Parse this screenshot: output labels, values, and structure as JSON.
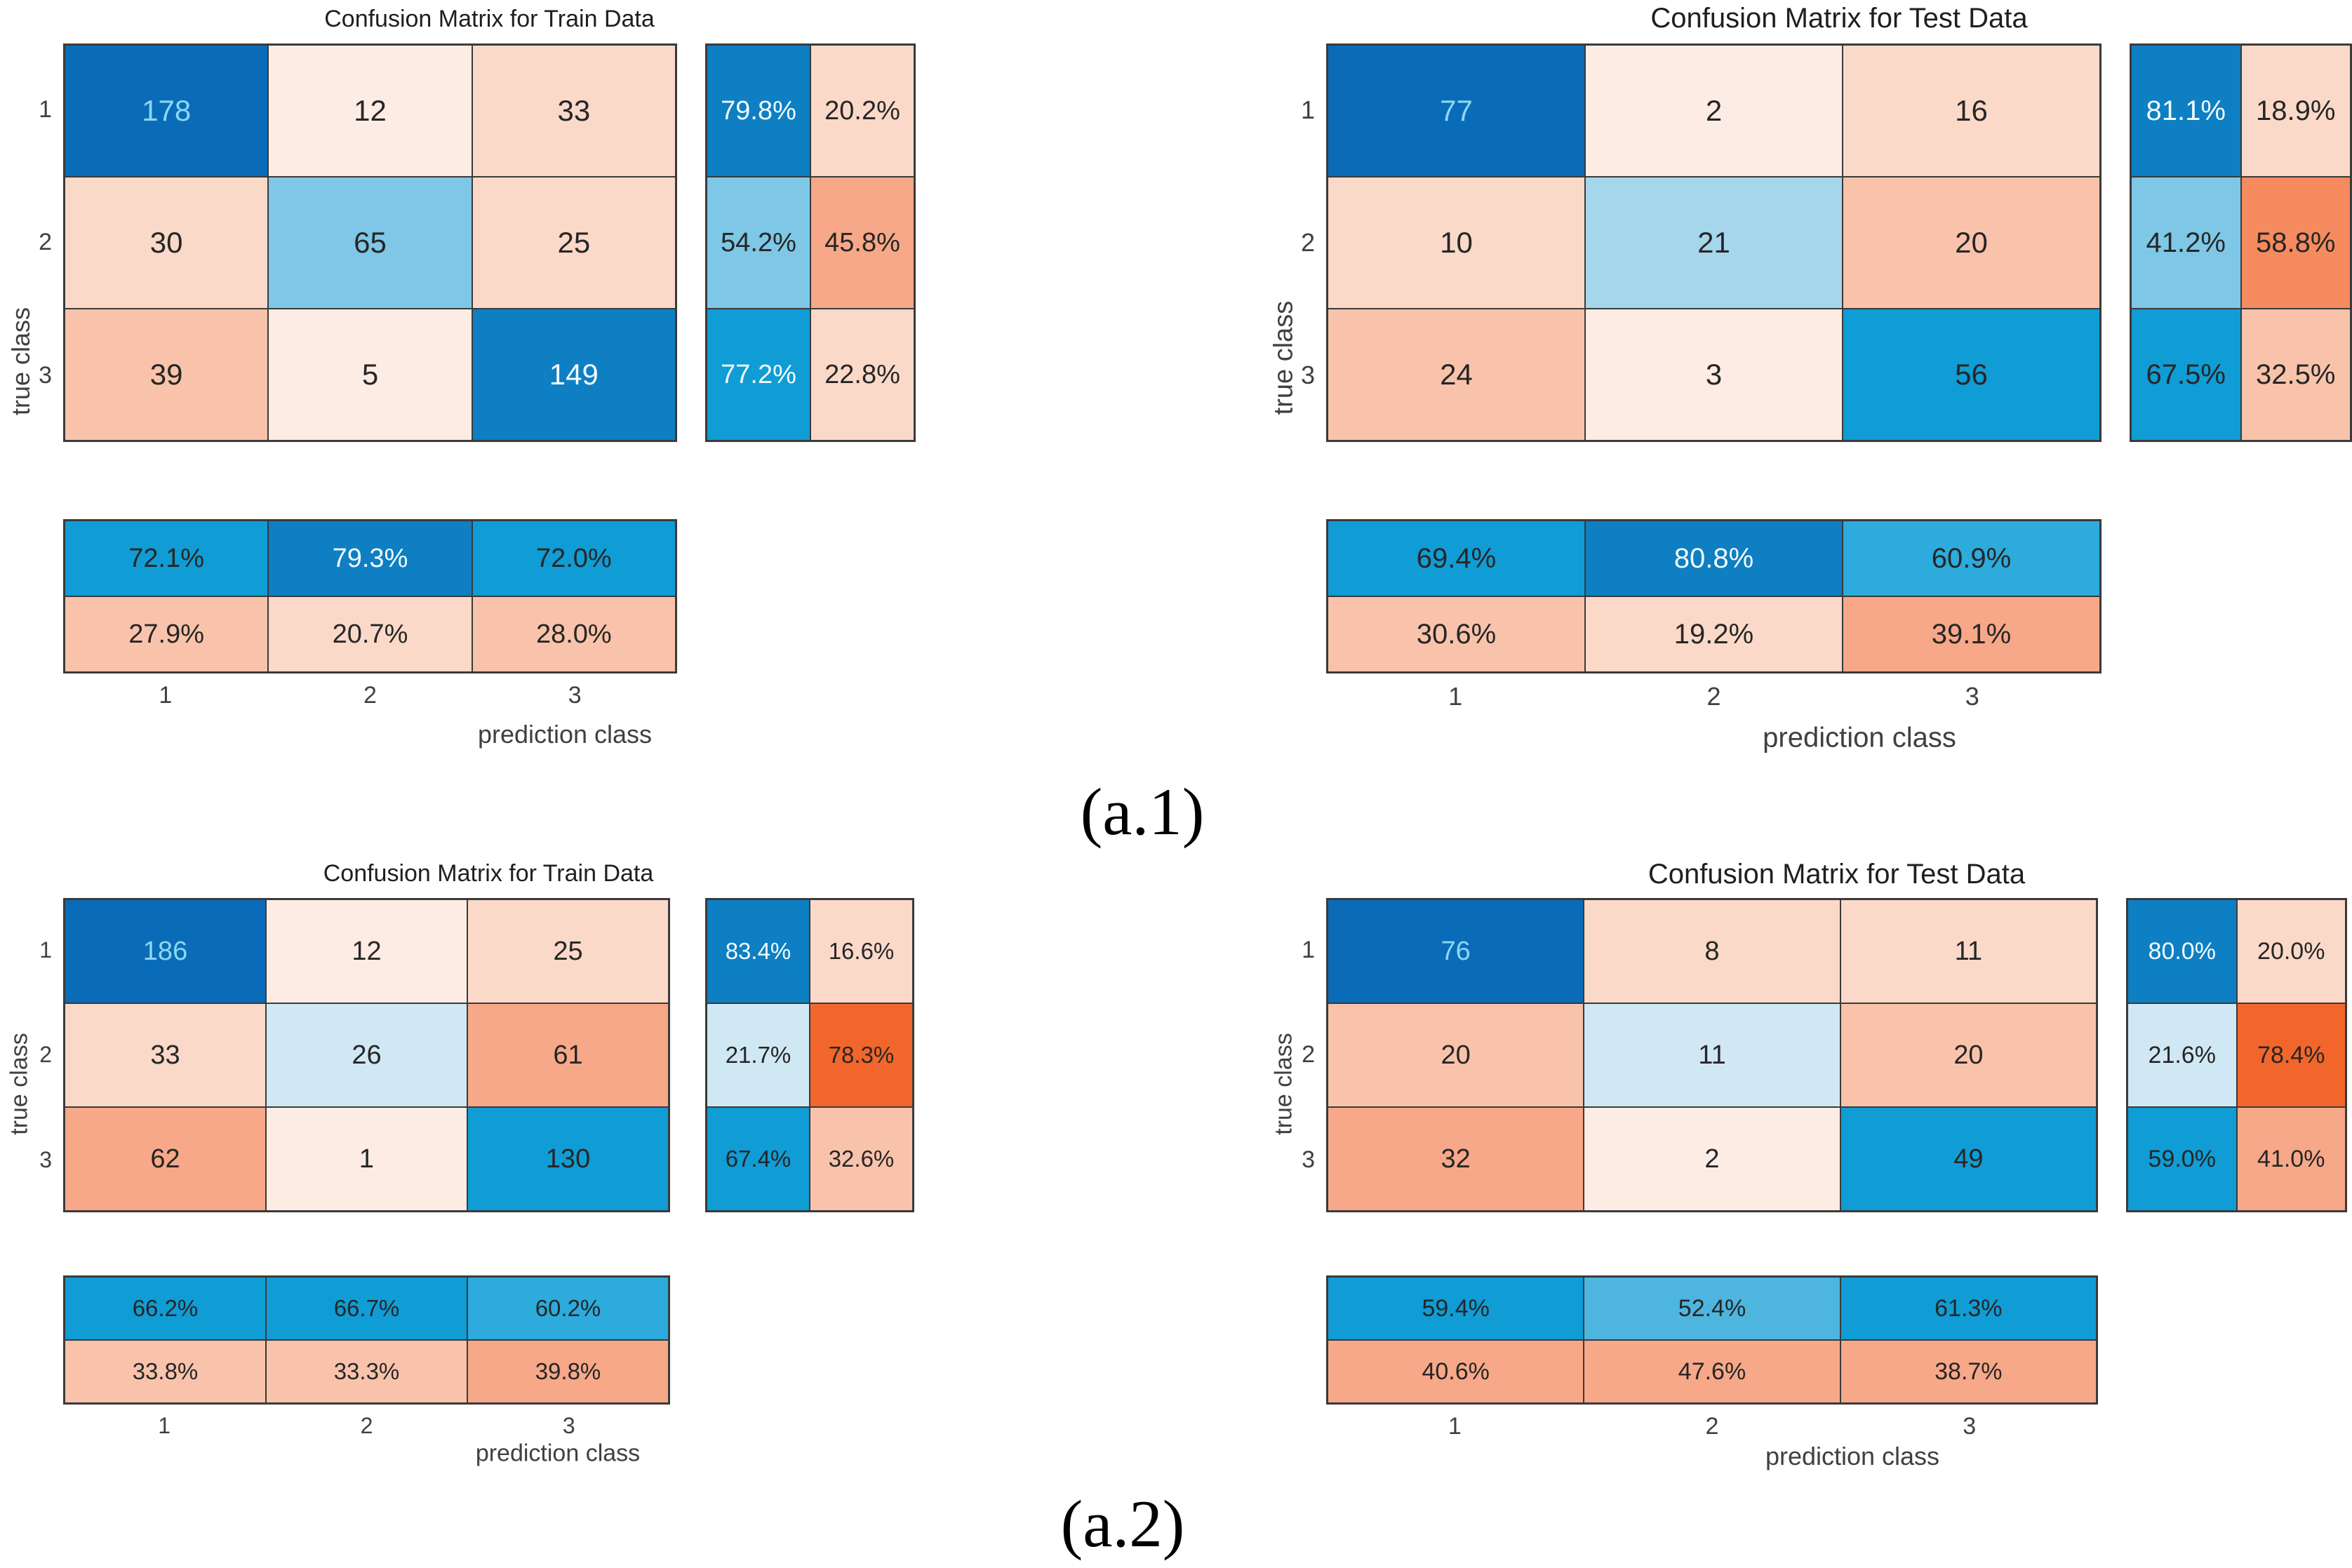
{
  "captions": {
    "a1": "(a.1)",
    "a2": "(a.2)"
  },
  "palette": {
    "blue_dark": "#0a6cb8",
    "blue_med": "#0d7fc2",
    "blue_std": "#109cd4",
    "blue_cyan": "#2cabdc",
    "blue_mid": "#4db5de",
    "blue_light": "#7ec7e6",
    "blue_pale": "#a6d6ec",
    "blue_faint": "#d0e8f4",
    "pink_faint": "#fdece4",
    "pink_light": "#fbd9c9",
    "pink_med": "#f9c3ab",
    "pink_deep": "#f7a888",
    "pink_hot": "#f58b5e",
    "orange_hot": "#f2662b"
  },
  "text_colors": {
    "dark": "#262626",
    "white": "#f2fafd",
    "cyan": "#8ed7f2"
  },
  "panels": [
    {
      "id": "train-a1",
      "title": "Confusion Matrix for Train Data",
      "xlabel": "prediction class",
      "ylabel": "true class",
      "row_ticks": [
        "1",
        "2",
        "3"
      ],
      "col_ticks": [
        "1",
        "2",
        "3"
      ],
      "matrix": [
        [
          {
            "v": "178",
            "bg": "blue_dark",
            "fg": "cyan"
          },
          {
            "v": "12",
            "bg": "pink_faint",
            "fg": "dark"
          },
          {
            "v": "33",
            "bg": "pink_light",
            "fg": "dark"
          }
        ],
        [
          {
            "v": "30",
            "bg": "pink_light",
            "fg": "dark"
          },
          {
            "v": "65",
            "bg": "blue_light",
            "fg": "dark"
          },
          {
            "v": "25",
            "bg": "pink_light",
            "fg": "dark"
          }
        ],
        [
          {
            "v": "39",
            "bg": "pink_med",
            "fg": "dark"
          },
          {
            "v": "5",
            "bg": "pink_faint",
            "fg": "dark"
          },
          {
            "v": "149",
            "bg": "blue_med",
            "fg": "white"
          }
        ]
      ],
      "row_summary": [
        [
          {
            "v": "79.8%",
            "bg": "blue_med",
            "fg": "white"
          },
          {
            "v": "20.2%",
            "bg": "pink_light",
            "fg": "dark"
          }
        ],
        [
          {
            "v": "54.2%",
            "bg": "blue_light",
            "fg": "dark"
          },
          {
            "v": "45.8%",
            "bg": "pink_deep",
            "fg": "dark"
          }
        ],
        [
          {
            "v": "77.2%",
            "bg": "blue_std",
            "fg": "white"
          },
          {
            "v": "22.8%",
            "bg": "pink_light",
            "fg": "dark"
          }
        ]
      ],
      "col_summary": [
        [
          {
            "v": "72.1%",
            "bg": "blue_std",
            "fg": "dark"
          },
          {
            "v": "79.3%",
            "bg": "blue_med",
            "fg": "white"
          },
          {
            "v": "72.0%",
            "bg": "blue_std",
            "fg": "dark"
          }
        ],
        [
          {
            "v": "27.9%",
            "bg": "pink_med",
            "fg": "dark"
          },
          {
            "v": "20.7%",
            "bg": "pink_light",
            "fg": "dark"
          },
          {
            "v": "28.0%",
            "bg": "pink_med",
            "fg": "dark"
          }
        ]
      ]
    },
    {
      "id": "test-a1",
      "title": "Confusion Matrix for Test Data",
      "xlabel": "prediction class",
      "ylabel": "true class",
      "row_ticks": [
        "1",
        "2",
        "3"
      ],
      "col_ticks": [
        "1",
        "2",
        "3"
      ],
      "matrix": [
        [
          {
            "v": "77",
            "bg": "blue_dark",
            "fg": "cyan"
          },
          {
            "v": "2",
            "bg": "pink_faint",
            "fg": "dark"
          },
          {
            "v": "16",
            "bg": "pink_light",
            "fg": "dark"
          }
        ],
        [
          {
            "v": "10",
            "bg": "pink_light",
            "fg": "dark"
          },
          {
            "v": "21",
            "bg": "blue_pale",
            "fg": "dark"
          },
          {
            "v": "20",
            "bg": "pink_med",
            "fg": "dark"
          }
        ],
        [
          {
            "v": "24",
            "bg": "pink_med",
            "fg": "dark"
          },
          {
            "v": "3",
            "bg": "pink_faint",
            "fg": "dark"
          },
          {
            "v": "56",
            "bg": "blue_std",
            "fg": "dark"
          }
        ]
      ],
      "row_summary": [
        [
          {
            "v": "81.1%",
            "bg": "blue_med",
            "fg": "white"
          },
          {
            "v": "18.9%",
            "bg": "pink_light",
            "fg": "dark"
          }
        ],
        [
          {
            "v": "41.2%",
            "bg": "blue_light",
            "fg": "dark"
          },
          {
            "v": "58.8%",
            "bg": "pink_hot",
            "fg": "dark"
          }
        ],
        [
          {
            "v": "67.5%",
            "bg": "blue_std",
            "fg": "dark"
          },
          {
            "v": "32.5%",
            "bg": "pink_med",
            "fg": "dark"
          }
        ]
      ],
      "col_summary": [
        [
          {
            "v": "69.4%",
            "bg": "blue_std",
            "fg": "dark"
          },
          {
            "v": "80.8%",
            "bg": "blue_med",
            "fg": "white"
          },
          {
            "v": "60.9%",
            "bg": "blue_cyan",
            "fg": "dark"
          }
        ],
        [
          {
            "v": "30.6%",
            "bg": "pink_med",
            "fg": "dark"
          },
          {
            "v": "19.2%",
            "bg": "pink_light",
            "fg": "dark"
          },
          {
            "v": "39.1%",
            "bg": "pink_deep",
            "fg": "dark"
          }
        ]
      ]
    },
    {
      "id": "train-a2",
      "title": "Confusion Matrix for Train Data",
      "xlabel": "prediction class",
      "ylabel": "true class",
      "row_ticks": [
        "1",
        "2",
        "3"
      ],
      "col_ticks": [
        "1",
        "2",
        "3"
      ],
      "matrix": [
        [
          {
            "v": "186",
            "bg": "blue_dark",
            "fg": "cyan"
          },
          {
            "v": "12",
            "bg": "pink_faint",
            "fg": "dark"
          },
          {
            "v": "25",
            "bg": "pink_light",
            "fg": "dark"
          }
        ],
        [
          {
            "v": "33",
            "bg": "pink_light",
            "fg": "dark"
          },
          {
            "v": "26",
            "bg": "blue_faint",
            "fg": "dark"
          },
          {
            "v": "61",
            "bg": "pink_deep",
            "fg": "dark"
          }
        ],
        [
          {
            "v": "62",
            "bg": "pink_deep",
            "fg": "dark"
          },
          {
            "v": "1",
            "bg": "pink_faint",
            "fg": "dark"
          },
          {
            "v": "130",
            "bg": "blue_std",
            "fg": "dark"
          }
        ]
      ],
      "row_summary": [
        [
          {
            "v": "83.4%",
            "bg": "blue_med",
            "fg": "white"
          },
          {
            "v": "16.6%",
            "bg": "pink_light",
            "fg": "dark"
          }
        ],
        [
          {
            "v": "21.7%",
            "bg": "blue_faint",
            "fg": "dark"
          },
          {
            "v": "78.3%",
            "bg": "orange_hot",
            "fg": "dark"
          }
        ],
        [
          {
            "v": "67.4%",
            "bg": "blue_std",
            "fg": "dark"
          },
          {
            "v": "32.6%",
            "bg": "pink_med",
            "fg": "dark"
          }
        ]
      ],
      "col_summary": [
        [
          {
            "v": "66.2%",
            "bg": "blue_std",
            "fg": "dark"
          },
          {
            "v": "66.7%",
            "bg": "blue_std",
            "fg": "dark"
          },
          {
            "v": "60.2%",
            "bg": "blue_cyan",
            "fg": "dark"
          }
        ],
        [
          {
            "v": "33.8%",
            "bg": "pink_med",
            "fg": "dark"
          },
          {
            "v": "33.3%",
            "bg": "pink_med",
            "fg": "dark"
          },
          {
            "v": "39.8%",
            "bg": "pink_deep",
            "fg": "dark"
          }
        ]
      ]
    },
    {
      "id": "test-a2",
      "title": "Confusion Matrix for Test Data",
      "xlabel": "prediction class",
      "ylabel": "true class",
      "row_ticks": [
        "1",
        "2",
        "3"
      ],
      "col_ticks": [
        "1",
        "2",
        "3"
      ],
      "matrix": [
        [
          {
            "v": "76",
            "bg": "blue_dark",
            "fg": "cyan"
          },
          {
            "v": "8",
            "bg": "pink_light",
            "fg": "dark"
          },
          {
            "v": "11",
            "bg": "pink_light",
            "fg": "dark"
          }
        ],
        [
          {
            "v": "20",
            "bg": "pink_med",
            "fg": "dark"
          },
          {
            "v": "11",
            "bg": "blue_faint",
            "fg": "dark"
          },
          {
            "v": "20",
            "bg": "pink_med",
            "fg": "dark"
          }
        ],
        [
          {
            "v": "32",
            "bg": "pink_deep",
            "fg": "dark"
          },
          {
            "v": "2",
            "bg": "pink_faint",
            "fg": "dark"
          },
          {
            "v": "49",
            "bg": "blue_std",
            "fg": "dark"
          }
        ]
      ],
      "row_summary": [
        [
          {
            "v": "80.0%",
            "bg": "blue_med",
            "fg": "white"
          },
          {
            "v": "20.0%",
            "bg": "pink_light",
            "fg": "dark"
          }
        ],
        [
          {
            "v": "21.6%",
            "bg": "blue_faint",
            "fg": "dark"
          },
          {
            "v": "78.4%",
            "bg": "orange_hot",
            "fg": "dark"
          }
        ],
        [
          {
            "v": "59.0%",
            "bg": "blue_std",
            "fg": "dark"
          },
          {
            "v": "41.0%",
            "bg": "pink_deep",
            "fg": "dark"
          }
        ]
      ],
      "col_summary": [
        [
          {
            "v": "59.4%",
            "bg": "blue_std",
            "fg": "dark"
          },
          {
            "v": "52.4%",
            "bg": "blue_mid",
            "fg": "dark"
          },
          {
            "v": "61.3%",
            "bg": "blue_std",
            "fg": "dark"
          }
        ],
        [
          {
            "v": "40.6%",
            "bg": "pink_deep",
            "fg": "dark"
          },
          {
            "v": "47.6%",
            "bg": "pink_deep",
            "fg": "dark"
          },
          {
            "v": "38.7%",
            "bg": "pink_deep",
            "fg": "dark"
          }
        ]
      ]
    }
  ],
  "chart_data": [
    {
      "type": "heatmap",
      "title": "Confusion Matrix for Train Data",
      "subfigure": "(a.1)",
      "xlabel": "prediction class",
      "ylabel": "true class",
      "classes": [
        1,
        2,
        3
      ],
      "counts": [
        [
          178,
          12,
          33
        ],
        [
          30,
          65,
          25
        ],
        [
          39,
          5,
          149
        ]
      ],
      "row_percent_correct": [
        [
          79.8,
          20.2
        ],
        [
          54.2,
          45.8
        ],
        [
          77.2,
          22.8
        ]
      ],
      "col_percent_correct": [
        [
          72.1,
          79.3,
          72.0
        ],
        [
          27.9,
          20.7,
          28.0
        ]
      ],
      "legend_position": "none",
      "grid": false
    },
    {
      "type": "heatmap",
      "title": "Confusion Matrix for Test Data",
      "subfigure": "(a.1)",
      "xlabel": "prediction class",
      "ylabel": "true class",
      "classes": [
        1,
        2,
        3
      ],
      "counts": [
        [
          77,
          2,
          16
        ],
        [
          10,
          21,
          20
        ],
        [
          24,
          3,
          56
        ]
      ],
      "row_percent_correct": [
        [
          81.1,
          18.9
        ],
        [
          41.2,
          58.8
        ],
        [
          67.5,
          32.5
        ]
      ],
      "col_percent_correct": [
        [
          69.4,
          80.8,
          60.9
        ],
        [
          30.6,
          19.2,
          39.1
        ]
      ],
      "legend_position": "none",
      "grid": false
    },
    {
      "type": "heatmap",
      "title": "Confusion Matrix for Train Data",
      "subfigure": "(a.2)",
      "xlabel": "prediction class",
      "ylabel": "true class",
      "classes": [
        1,
        2,
        3
      ],
      "counts": [
        [
          186,
          12,
          25
        ],
        [
          33,
          26,
          61
        ],
        [
          62,
          1,
          130
        ]
      ],
      "row_percent_correct": [
        [
          83.4,
          16.6
        ],
        [
          21.7,
          78.3
        ],
        [
          67.4,
          32.6
        ]
      ],
      "col_percent_correct": [
        [
          66.2,
          66.7,
          60.2
        ],
        [
          33.8,
          33.3,
          39.8
        ]
      ],
      "legend_position": "none",
      "grid": false
    },
    {
      "type": "heatmap",
      "title": "Confusion Matrix for Test Data",
      "subfigure": "(a.2)",
      "xlabel": "prediction class",
      "ylabel": "true class",
      "classes": [
        1,
        2,
        3
      ],
      "counts": [
        [
          76,
          8,
          11
        ],
        [
          20,
          11,
          20
        ],
        [
          32,
          2,
          49
        ]
      ],
      "row_percent_correct": [
        [
          80.0,
          20.0
        ],
        [
          21.6,
          78.4
        ],
        [
          59.0,
          41.0
        ]
      ],
      "col_percent_correct": [
        [
          59.4,
          52.4,
          61.3
        ],
        [
          40.6,
          47.6,
          38.7
        ]
      ],
      "legend_position": "none",
      "grid": false
    }
  ]
}
